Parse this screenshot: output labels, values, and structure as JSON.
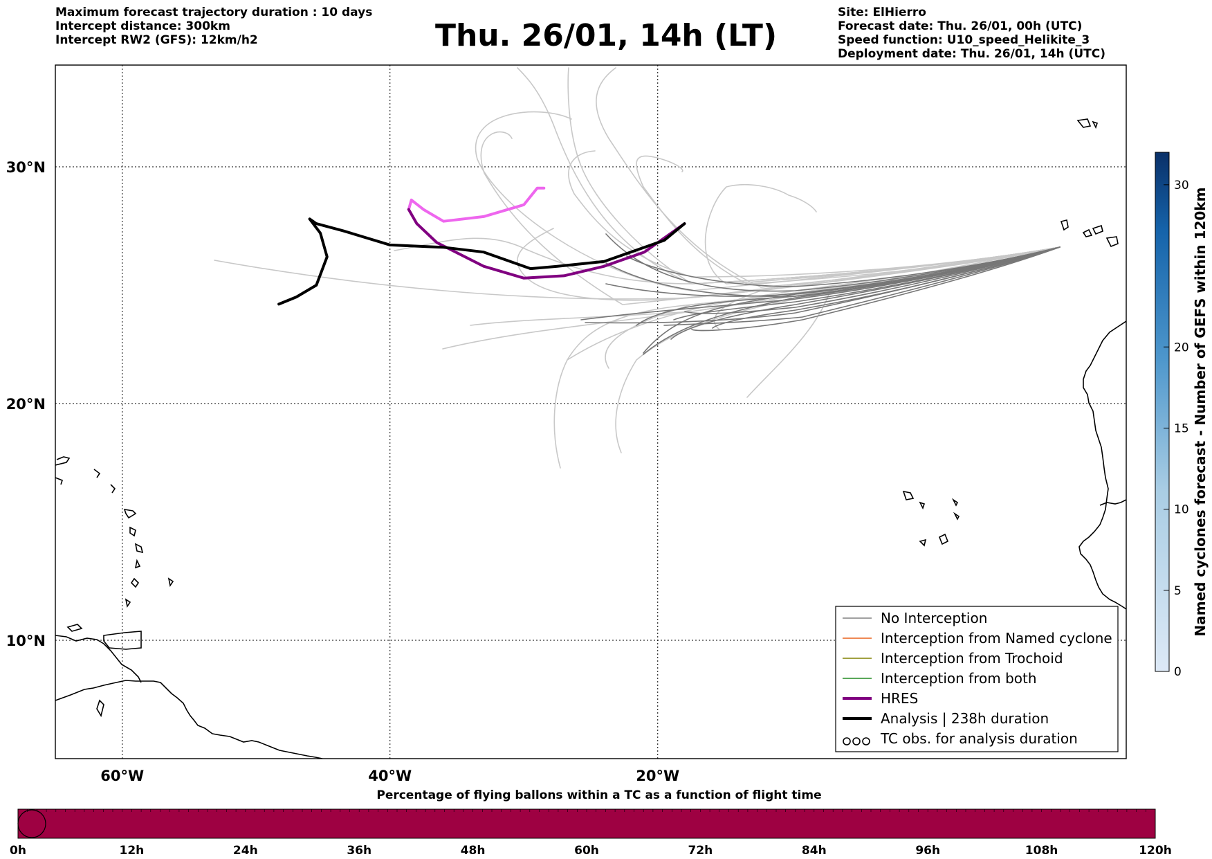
{
  "header": {
    "left_lines": [
      "Maximum forecast trajectory duration : 10 days",
      "Intercept distance: 300km",
      "Intercept RW2 (GFS):  12km/h2"
    ],
    "title": "Thu. 26/01, 14h (LT)",
    "right_lines": [
      "Site: ElHierro",
      "Forecast date: Thu. 26/01, 00h (UTC)",
      "Speed function: U10_speed_Helikite_3",
      "Deployment date: Thu. 26/01, 14h (UTC)"
    ]
  },
  "map": {
    "lon_range": [
      -65,
      15
    ],
    "lat_range": [
      5,
      34.3
    ],
    "lon_ticks": [
      {
        "value": -60,
        "label": "60°W"
      },
      {
        "value": -40,
        "label": "40°W"
      },
      {
        "value": -20,
        "label": "20°W"
      }
    ],
    "lat_ticks": [
      {
        "value": 30,
        "label": "30°N"
      },
      {
        "value": 20,
        "label": "20°N"
      },
      {
        "value": 10,
        "label": "10°N"
      }
    ],
    "grid": "dotted"
  },
  "legend": {
    "items": [
      {
        "label": "No Interception",
        "color": "#808080",
        "style": "thin"
      },
      {
        "label": "Interception from Named cyclone",
        "color": "#e8601c",
        "style": "thin"
      },
      {
        "label": "Interception from Trochoid",
        "color": "#808000",
        "style": "thin"
      },
      {
        "label": "Interception from both",
        "color": "#228b22",
        "style": "thin"
      },
      {
        "label": "HRES",
        "color": "#800080",
        "style": "thick"
      },
      {
        "label": "Analysis | 238h duration",
        "color": "#000000",
        "style": "thick"
      },
      {
        "label": "TC obs. for analysis duration",
        "color": "#000000",
        "style": "symbol"
      }
    ]
  },
  "colorbar": {
    "label": "Named cyclones forecast - Number of GEFS within 120km",
    "ticks": [
      0,
      5,
      10,
      15,
      20,
      30
    ],
    "range": [
      0,
      32
    ]
  },
  "bottom_bar": {
    "title": "Percentage of flying ballons within a TC as a function of flight time",
    "color": "#9e0142",
    "ticks": [
      "0h",
      "12h",
      "24h",
      "36h",
      "48h",
      "60h",
      "72h",
      "84h",
      "96h",
      "108h",
      "120h"
    ]
  },
  "trajectories": {
    "analysis": [
      [
        -48.3,
        24.2
      ],
      [
        -47,
        24.5
      ],
      [
        -45.5,
        25
      ],
      [
        -44.7,
        26.2
      ],
      [
        -45.2,
        27.2
      ],
      [
        -46,
        27.8
      ],
      [
        -45.5,
        27.6
      ],
      [
        -43.5,
        27.3
      ],
      [
        -40,
        26.7
      ],
      [
        -36,
        26.6
      ],
      [
        -33,
        26.4
      ],
      [
        -29.5,
        25.7
      ],
      [
        -27.5,
        25.8
      ],
      [
        -24,
        26
      ],
      [
        -21.5,
        26.5
      ],
      [
        -19.5,
        26.9
      ],
      [
        -18,
        27.6
      ]
    ],
    "hres": [
      [
        -38.6,
        28.2
      ],
      [
        -38,
        27.6
      ],
      [
        -36.5,
        26.8
      ],
      [
        -33,
        25.8
      ],
      [
        -30,
        25.3
      ],
      [
        -27,
        25.4
      ],
      [
        -24,
        25.8
      ],
      [
        -21,
        26.4
      ],
      [
        -18,
        27.6
      ]
    ],
    "hres_branch": [
      [
        -38.6,
        28.2
      ],
      [
        -38.4,
        28.6
      ],
      [
        -37.5,
        28.2
      ],
      [
        -36,
        27.7
      ],
      [
        -33,
        27.9
      ],
      [
        -30,
        28.4
      ],
      [
        -29,
        29.1
      ],
      [
        -28.5,
        29.1
      ]
    ]
  }
}
